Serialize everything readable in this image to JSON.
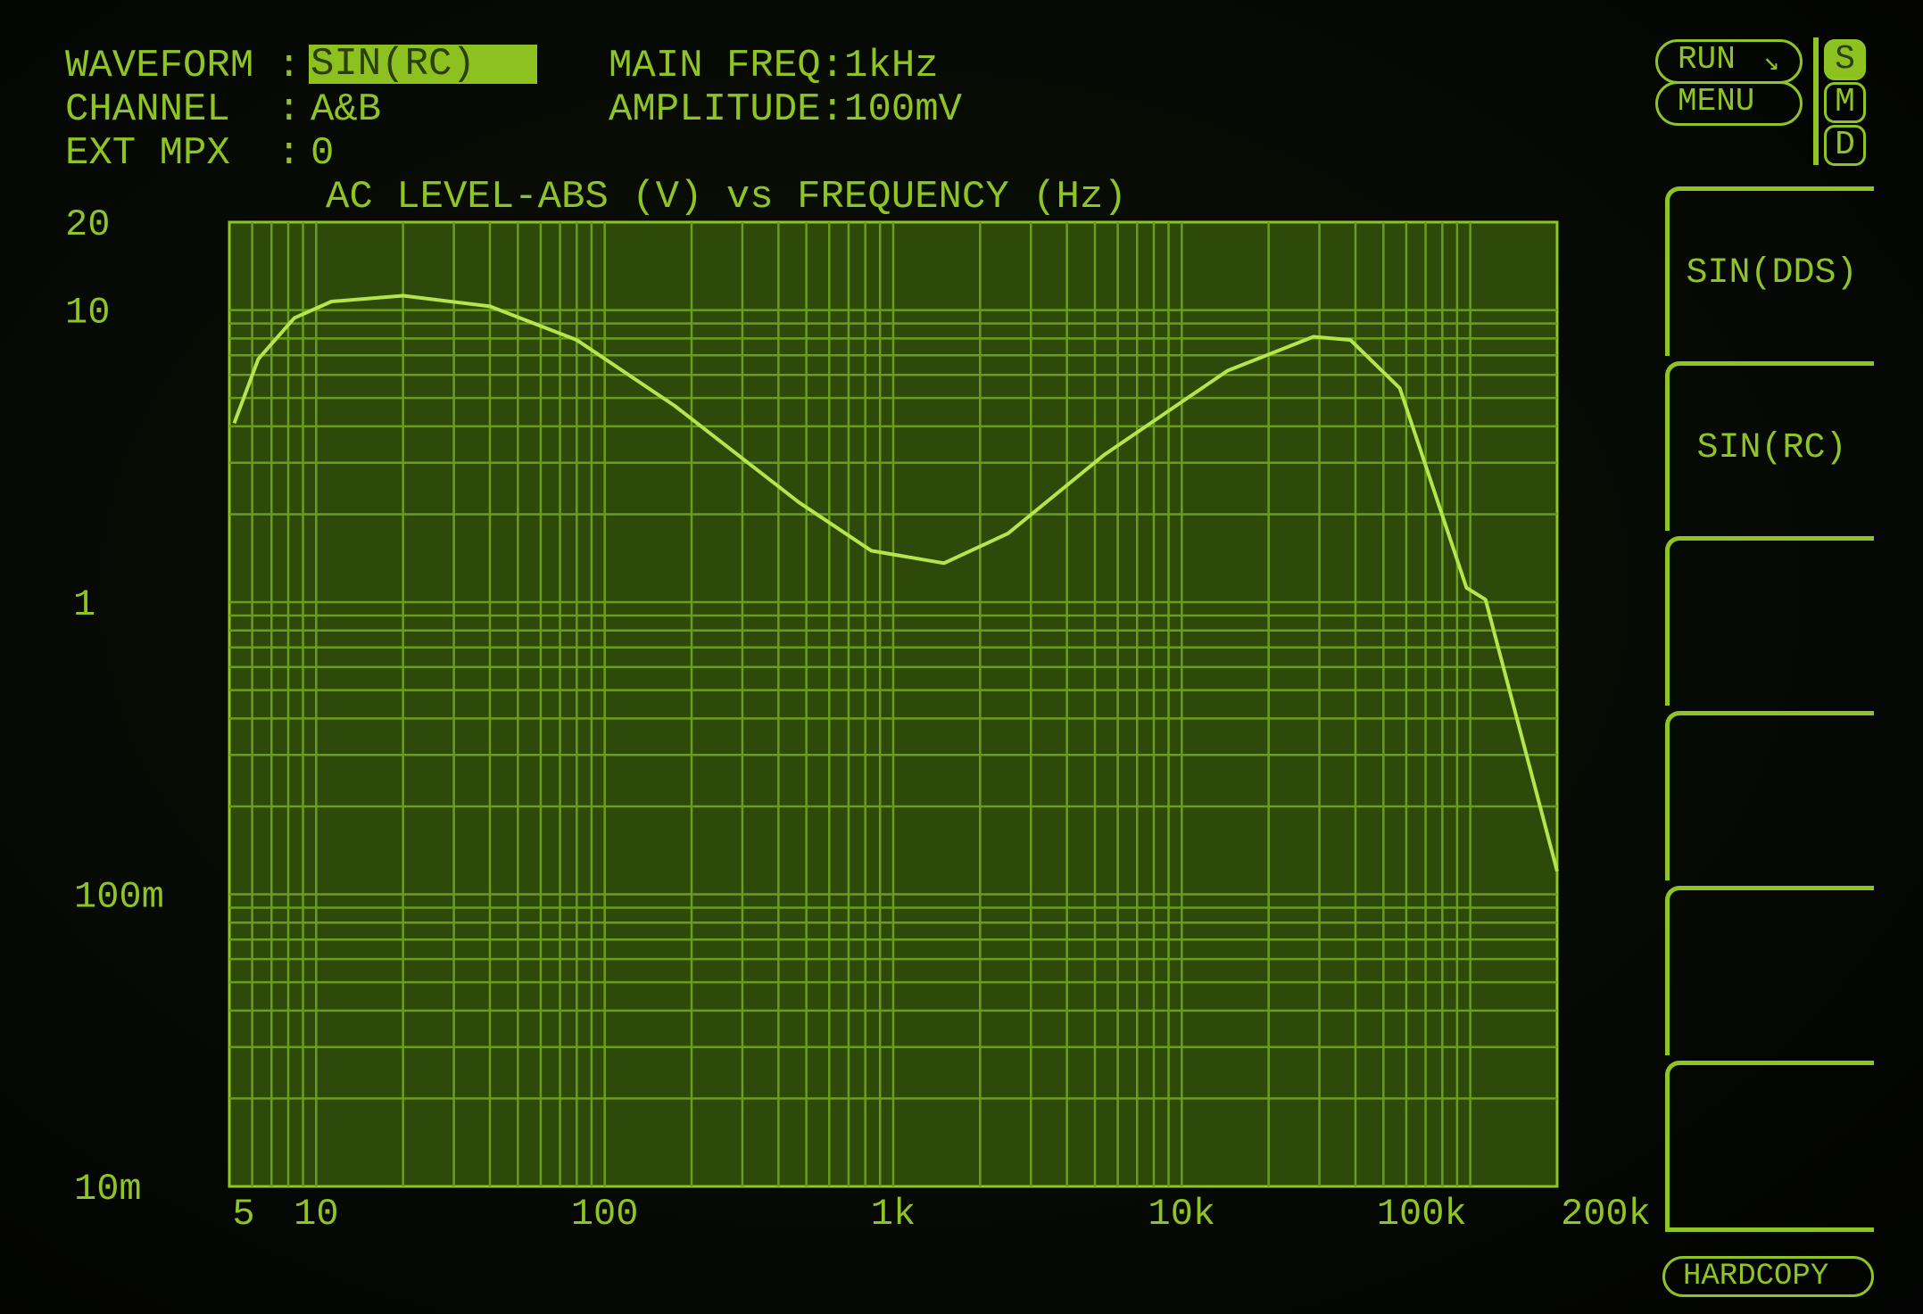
{
  "header": {
    "waveform_label": "WAVEFORM :",
    "waveform_value": "SIN(RC)",
    "channel_label": "CHANNEL  :",
    "channel_value": "A&B",
    "ext_mpx_label": "EXT MPX  :",
    "ext_mpx_value": "0",
    "main_freq": "MAIN FREQ:1kHz",
    "amplitude": "AMPLITUDE:100mV"
  },
  "controls": {
    "run_label": "RUN",
    "menu_label": "MENU",
    "smd": [
      {
        "label": "S",
        "active": true
      },
      {
        "label": "M",
        "active": false
      },
      {
        "label": "D",
        "active": false
      }
    ],
    "hardcopy_label": "HARDCOPY"
  },
  "softkeys": [
    "SIN(DDS)",
    "SIN(RC)",
    "",
    "",
    "",
    ""
  ],
  "colors": {
    "phosphor": "#8fc425",
    "plot_bg": "#2e4a0b",
    "grid": "#6c9c1c",
    "trace": "#b4e54a"
  },
  "chart_data": {
    "type": "line",
    "title": "AC LEVEL-ABS (V) vs FREQUENCY (Hz)",
    "x_scale": "log",
    "y_scale": "log",
    "xlim": [
      5,
      200000
    ],
    "ylim": [
      0.01,
      20
    ],
    "grid": true,
    "x_ticks": [
      {
        "v": 5,
        "label": "5"
      },
      {
        "v": 10,
        "label": "10"
      },
      {
        "v": 100,
        "label": "100"
      },
      {
        "v": 1000,
        "label": "1k"
      },
      {
        "v": 10000,
        "label": "10k"
      },
      {
        "v": 100000,
        "label": "100k"
      },
      {
        "v": 200000,
        "label": "200k"
      }
    ],
    "y_ticks": [
      {
        "v": 20,
        "label": "20"
      },
      {
        "v": 10,
        "label": "10"
      },
      {
        "v": 1,
        "label": "1"
      },
      {
        "v": 0.1,
        "label": "100m"
      },
      {
        "v": 0.01,
        "label": "10m"
      }
    ],
    "series": [
      {
        "x": [
          5.2,
          6.3,
          8.4,
          11.3,
          20,
          40,
          80,
          175,
          470,
          840,
          1500,
          2500,
          5400,
          14400,
          28600,
          38400,
          57000,
          97000,
          113000,
          200000
        ],
        "y": [
          4.1,
          6.8,
          9.4,
          10.7,
          11.2,
          10.3,
          7.9,
          4.7,
          2.2,
          1.5,
          1.36,
          1.72,
          3.2,
          6.2,
          8.1,
          7.9,
          5.4,
          1.12,
          1.02,
          0.12
        ]
      }
    ]
  }
}
